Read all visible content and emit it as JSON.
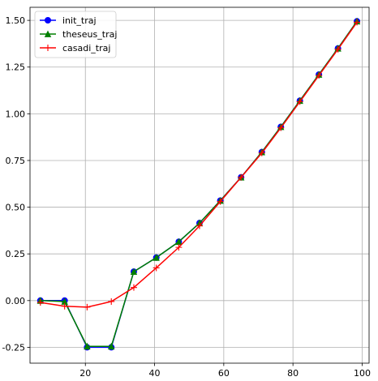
{
  "chart_data": {
    "type": "line",
    "title": "",
    "xlabel": "",
    "ylabel": "",
    "xlim": [
      4,
      102
    ],
    "ylim": [
      -0.335,
      1.57
    ],
    "grid": true,
    "legend_position": "top-left",
    "x_ticks": [
      20,
      40,
      60,
      80,
      100
    ],
    "x_tick_labels": [
      "20",
      "40",
      "60",
      "80",
      "100"
    ],
    "y_ticks": [
      -0.25,
      0.0,
      0.25,
      0.5,
      0.75,
      1.0,
      1.25,
      1.5
    ],
    "y_tick_labels": [
      "-0.25",
      "0.00",
      "0.25",
      "0.50",
      "0.75",
      "1.00",
      "1.25",
      "1.50"
    ],
    "series": [
      {
        "name": "init_traj",
        "color": "#0000ff",
        "marker": "circle",
        "x": [
          7,
          14,
          20.5,
          27.5,
          34,
          40.5,
          47,
          53,
          59,
          65,
          71,
          76.5,
          82,
          87.5,
          93,
          98.5
        ],
        "y": [
          0.0,
          0.0,
          -0.25,
          -0.25,
          0.155,
          0.23,
          0.315,
          0.415,
          0.535,
          0.66,
          0.795,
          0.93,
          1.07,
          1.21,
          1.35,
          1.495
        ]
      },
      {
        "name": "theseus_traj",
        "color": "#007f00",
        "marker": "triangle",
        "x": [
          7,
          14,
          20.5,
          27.5,
          34,
          40.5,
          47,
          53,
          59,
          65,
          71,
          76.5,
          82,
          87.5,
          93,
          98.5
        ],
        "y": [
          0.0,
          -0.005,
          -0.245,
          -0.245,
          0.155,
          0.23,
          0.315,
          0.415,
          0.535,
          0.66,
          0.795,
          0.93,
          1.07,
          1.21,
          1.35,
          1.495
        ]
      },
      {
        "name": "casadi_traj",
        "color": "#ff0000",
        "marker": "plus",
        "x": [
          7,
          14,
          20.5,
          27.5,
          34,
          40.5,
          47,
          53,
          59,
          65,
          71,
          76.5,
          82,
          87.5,
          93,
          98.5
        ],
        "y": [
          -0.01,
          -0.03,
          -0.035,
          -0.005,
          0.07,
          0.175,
          0.285,
          0.4,
          0.53,
          0.66,
          0.79,
          0.925,
          1.065,
          1.205,
          1.345,
          1.49
        ]
      }
    ]
  }
}
